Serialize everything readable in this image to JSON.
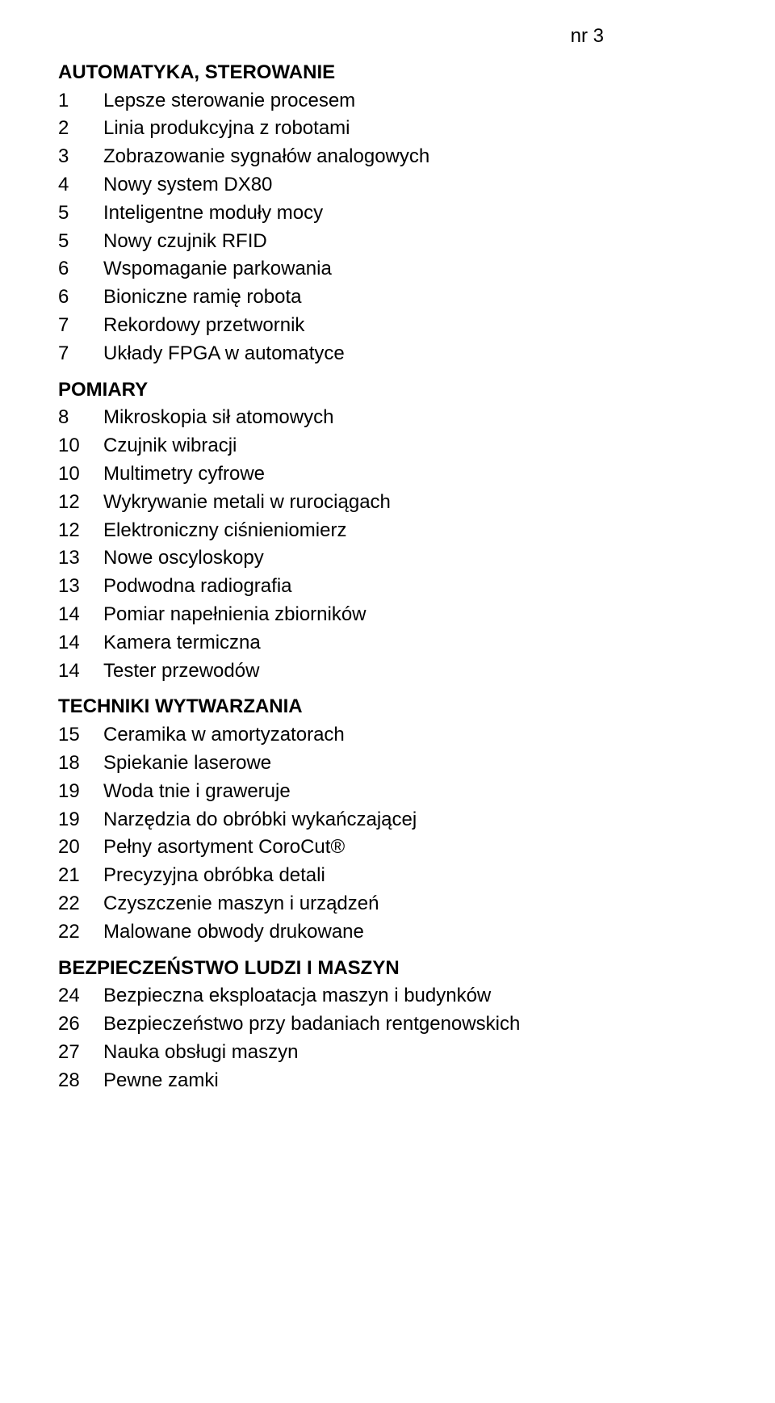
{
  "issue_label": "nr 3",
  "sections": [
    {
      "title": "AUTOMATYKA, STEROWANIE",
      "entries": [
        {
          "num": "1",
          "text": "Lepsze sterowanie procesem"
        },
        {
          "num": "2",
          "text": "Linia produkcyjna z robotami"
        },
        {
          "num": "3",
          "text": "Zobrazowanie sygnałów analogowych"
        },
        {
          "num": "4",
          "text": "Nowy system DX80"
        },
        {
          "num": "5",
          "text": "Inteligentne moduły mocy"
        },
        {
          "num": "5",
          "text": "Nowy czujnik RFID"
        },
        {
          "num": "6",
          "text": "Wspomaganie parkowania"
        },
        {
          "num": "6",
          "text": "Bioniczne ramię robota"
        },
        {
          "num": "7",
          "text": "Rekordowy przetwornik"
        },
        {
          "num": "7",
          "text": "Układy FPGA w automatyce"
        }
      ]
    },
    {
      "title": "POMIARY",
      "entries": [
        {
          "num": "8",
          "text": "Mikroskopia sił atomowych"
        },
        {
          "num": "10",
          "text": "Czujnik wibracji"
        },
        {
          "num": "10",
          "text": "Multimetry cyfrowe"
        },
        {
          "num": "12",
          "text": "Wykrywanie metali w rurociągach"
        },
        {
          "num": "12",
          "text": "Elektroniczny ciśnieniomierz"
        },
        {
          "num": "13",
          "text": "Nowe oscyloskopy"
        },
        {
          "num": "13",
          "text": "Podwodna radiografia"
        },
        {
          "num": "14",
          "text": "Pomiar napełnienia zbiorników"
        },
        {
          "num": "14",
          "text": "Kamera termiczna"
        },
        {
          "num": "14",
          "text": "Tester przewodów"
        }
      ]
    },
    {
      "title": "TECHNIKI WYTWARZANIA",
      "entries": [
        {
          "num": "15",
          "text": "Ceramika w amortyzatorach"
        },
        {
          "num": "18",
          "text": "Spiekanie laserowe"
        },
        {
          "num": "19",
          "text": "Woda tnie i graweruje"
        },
        {
          "num": "19",
          "text": "Narzędzia do obróbki wykańczającej"
        },
        {
          "num": "20",
          "text": "Pełny asortyment CoroCut®"
        },
        {
          "num": "21",
          "text": "Precyzyjna obróbka detali"
        },
        {
          "num": "22",
          "text": "Czyszczenie maszyn i urządzeń"
        },
        {
          "num": "22",
          "text": "Malowane obwody drukowane"
        }
      ]
    },
    {
      "title": "BEZPIECZEŃSTWO LUDZI I MASZYN",
      "entries": [
        {
          "num": "24",
          "text": "Bezpieczna eksploatacja maszyn i budynków"
        },
        {
          "num": "26",
          "text": "Bezpieczeństwo przy badaniach rentgenowskich"
        },
        {
          "num": "27",
          "text": "Nauka obsługi maszyn"
        },
        {
          "num": "28",
          "text": "Pewne zamki"
        }
      ]
    }
  ]
}
